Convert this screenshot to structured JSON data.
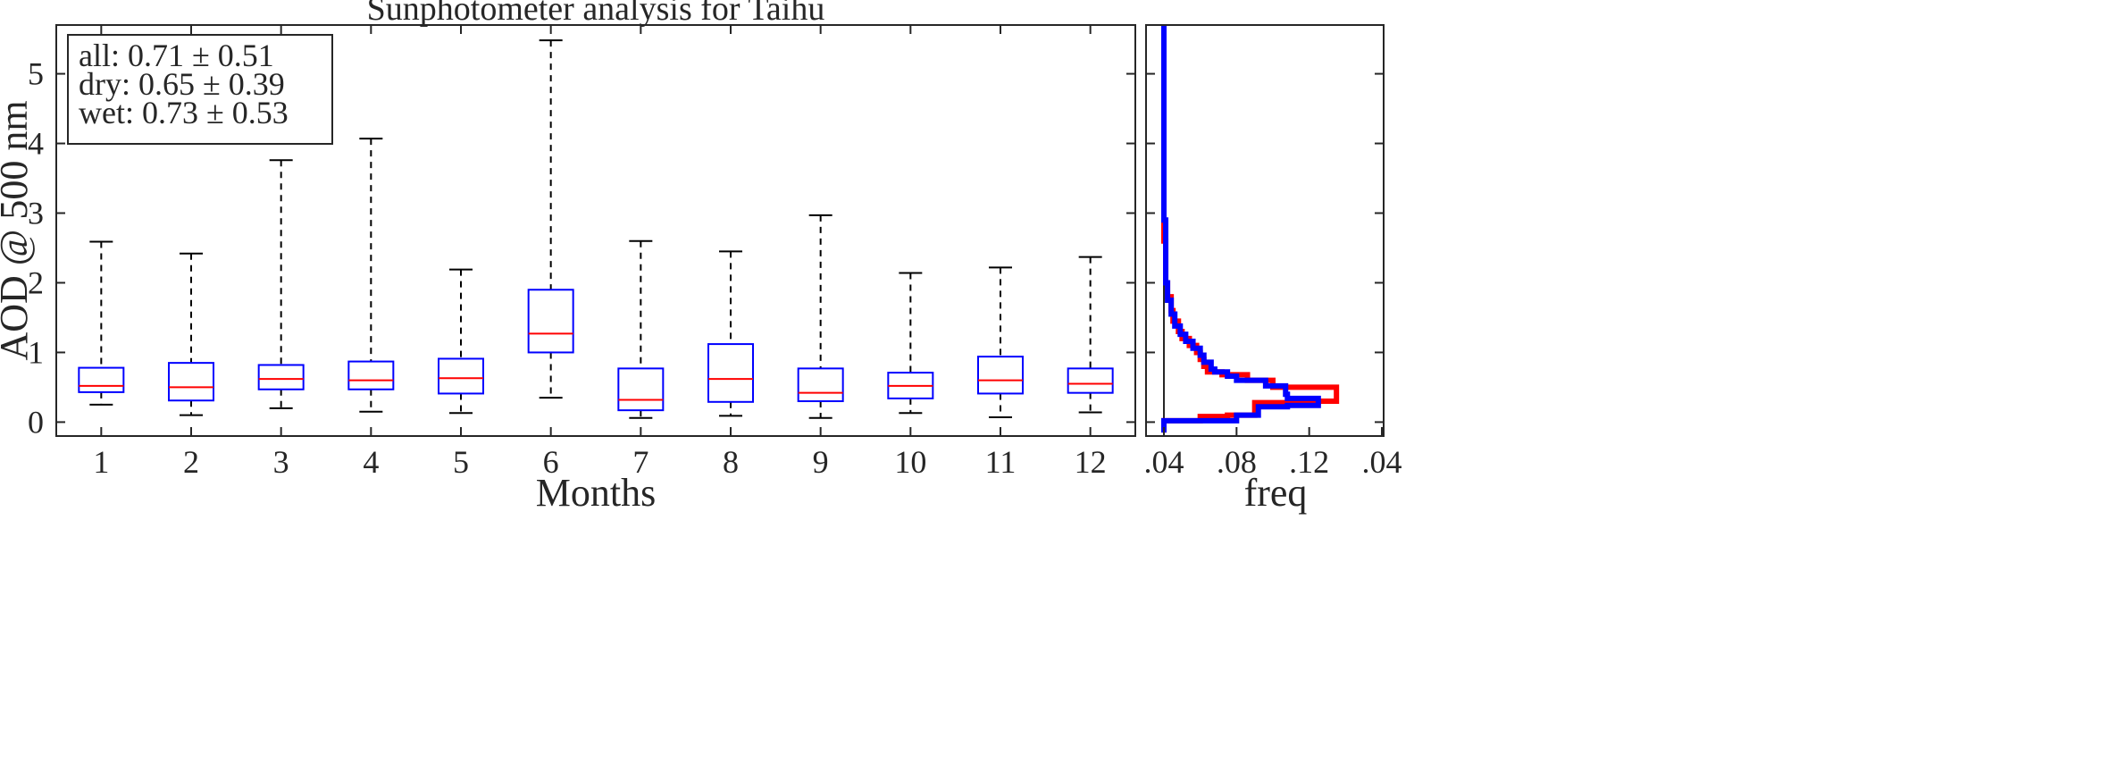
{
  "chart_data": [
    {
      "type": "box",
      "title": "Sunphotometer analysis for Taihu",
      "xlabel": "Months",
      "ylabel": "AOD @ 500 nm",
      "ylim": [
        -0.2,
        5.7
      ],
      "yticks": [
        "0",
        "1",
        "2",
        "3",
        "4",
        "5"
      ],
      "categories": [
        "1",
        "2",
        "3",
        "4",
        "5",
        "6",
        "7",
        "8",
        "9",
        "10",
        "11",
        "12"
      ],
      "boxes": [
        {
          "month": "1",
          "whisker_low": 0.25,
          "q1": 0.43,
          "median": 0.52,
          "q3": 0.78,
          "whisker_high": 2.59
        },
        {
          "month": "2",
          "whisker_low": 0.1,
          "q1": 0.31,
          "median": 0.5,
          "q3": 0.85,
          "whisker_high": 2.42
        },
        {
          "month": "3",
          "whisker_low": 0.2,
          "q1": 0.47,
          "median": 0.62,
          "q3": 0.82,
          "whisker_high": 3.76
        },
        {
          "month": "4",
          "whisker_low": 0.15,
          "q1": 0.47,
          "median": 0.6,
          "q3": 0.87,
          "whisker_high": 4.07
        },
        {
          "month": "5",
          "whisker_low": 0.13,
          "q1": 0.41,
          "median": 0.63,
          "q3": 0.91,
          "whisker_high": 2.19
        },
        {
          "month": "6",
          "whisker_low": 0.35,
          "q1": 1.0,
          "median": 1.27,
          "q3": 1.9,
          "whisker_high": 5.48
        },
        {
          "month": "7",
          "whisker_low": 0.06,
          "q1": 0.17,
          "median": 0.32,
          "q3": 0.77,
          "whisker_high": 2.6
        },
        {
          "month": "8",
          "whisker_low": 0.09,
          "q1": 0.29,
          "median": 0.62,
          "q3": 1.12,
          "whisker_high": 2.45
        },
        {
          "month": "9",
          "whisker_low": 0.06,
          "q1": 0.3,
          "median": 0.42,
          "q3": 0.77,
          "whisker_high": 2.97
        },
        {
          "month": "10",
          "whisker_low": 0.13,
          "q1": 0.34,
          "median": 0.52,
          "q3": 0.71,
          "whisker_high": 2.14
        },
        {
          "month": "11",
          "whisker_low": 0.07,
          "q1": 0.41,
          "median": 0.6,
          "q3": 0.94,
          "whisker_high": 2.22
        },
        {
          "month": "12",
          "whisker_low": 0.14,
          "q1": 0.42,
          "median": 0.55,
          "q3": 0.77,
          "whisker_high": 2.37
        }
      ],
      "legend": {
        "placement": "top-left",
        "lines": [
          "all: 0.71 ±  0.51",
          "dry: 0.65 ±  0.39",
          "wet: 0.73 ±  0.53"
        ]
      },
      "colors": {
        "box": "#0000ff",
        "median": "#ff0000",
        "whisker": "#000000"
      },
      "grid": false
    },
    {
      "type": "line",
      "xlabel": "freq",
      "xticks": [
        ".04",
        ".08",
        ".12",
        ".04"
      ],
      "xlim": [
        0.04,
        0.16
      ],
      "ylim": [
        -0.2,
        5.7
      ],
      "orientation": "horizontal-step histogram sharing AOD axis",
      "series": [
        {
          "color": "#ff0000",
          "points": [
            [
              0.04,
              -0.15
            ],
            [
              0.04,
              0.02
            ],
            [
              0.06,
              0.04
            ],
            [
              0.06,
              0.08
            ],
            [
              0.075,
              0.1
            ],
            [
              0.09,
              0.22
            ],
            [
              0.09,
              0.28
            ],
            [
              0.125,
              0.3
            ],
            [
              0.135,
              0.42
            ],
            [
              0.135,
              0.5
            ],
            [
              0.1,
              0.6
            ],
            [
              0.086,
              0.68
            ],
            [
              0.072,
              0.72
            ],
            [
              0.064,
              0.8
            ],
            [
              0.062,
              0.9
            ],
            [
              0.06,
              1.0
            ],
            [
              0.058,
              1.1
            ],
            [
              0.054,
              1.2
            ],
            [
              0.05,
              1.3
            ],
            [
              0.048,
              1.45
            ],
            [
              0.045,
              1.6
            ],
            [
              0.044,
              1.8
            ],
            [
              0.042,
              2.0
            ],
            [
              0.041,
              2.3
            ],
            [
              0.041,
              2.6
            ],
            [
              0.04,
              3.0
            ],
            [
              0.04,
              5.7
            ]
          ]
        },
        {
          "color": "#0000ff",
          "points": [
            [
              0.04,
              -0.15
            ],
            [
              0.04,
              0.02
            ],
            [
              0.08,
              0.04
            ],
            [
              0.08,
              0.1
            ],
            [
              0.092,
              0.14
            ],
            [
              0.092,
              0.22
            ],
            [
              0.108,
              0.24
            ],
            [
              0.125,
              0.28
            ],
            [
              0.125,
              0.34
            ],
            [
              0.108,
              0.4
            ],
            [
              0.107,
              0.52
            ],
            [
              0.096,
              0.6
            ],
            [
              0.08,
              0.66
            ],
            [
              0.075,
              0.72
            ],
            [
              0.068,
              0.76
            ],
            [
              0.066,
              0.86
            ],
            [
              0.062,
              0.96
            ],
            [
              0.06,
              1.06
            ],
            [
              0.056,
              1.16
            ],
            [
              0.052,
              1.26
            ],
            [
              0.049,
              1.38
            ],
            [
              0.046,
              1.55
            ],
            [
              0.044,
              1.75
            ],
            [
              0.042,
              2.0
            ],
            [
              0.041,
              2.4
            ],
            [
              0.041,
              2.9
            ],
            [
              0.04,
              3.3
            ],
            [
              0.04,
              5.7
            ]
          ]
        }
      ]
    }
  ]
}
